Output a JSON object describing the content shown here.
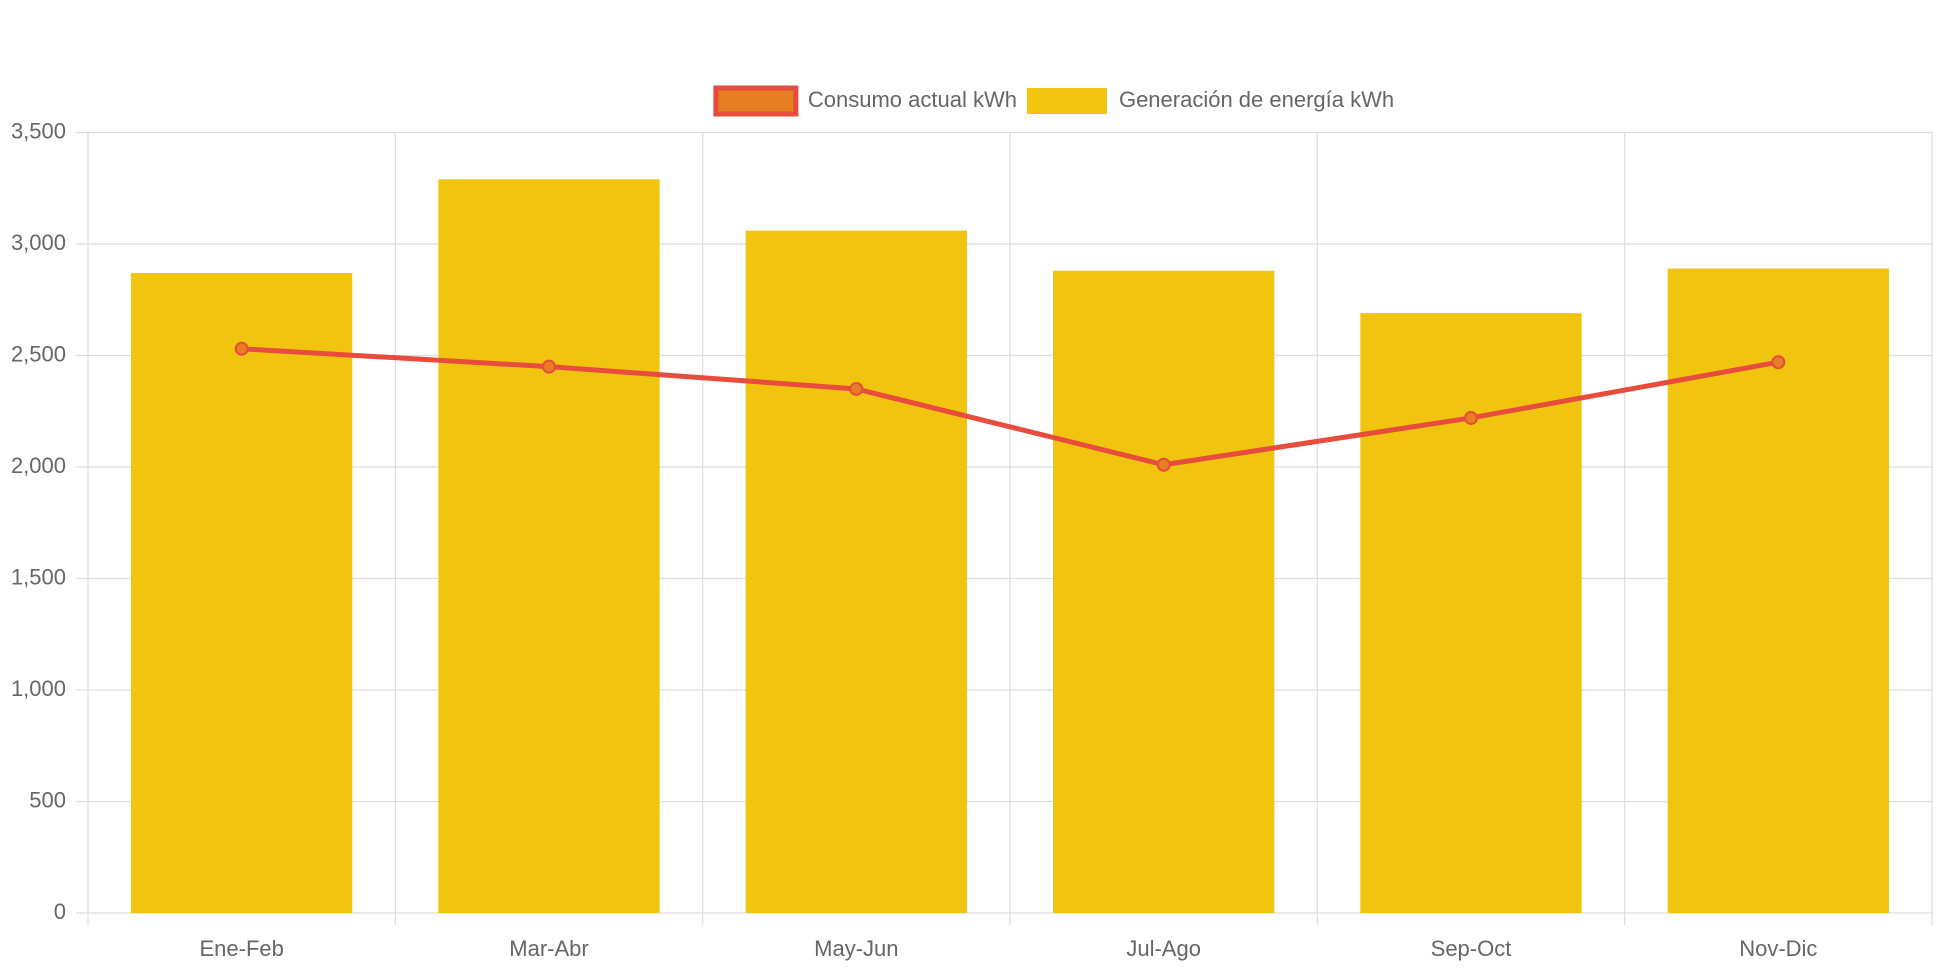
{
  "chart_data": {
    "type": "bar-line",
    "categories": [
      "Ene-Feb",
      "Mar-Abr",
      "May-Jun",
      "Jul-Ago",
      "Sep-Oct",
      "Nov-Dic"
    ],
    "series": [
      {
        "name": "Consumo actual kWh",
        "type": "line",
        "color": "#e74c3c",
        "point_color": "#e67e22",
        "values": [
          2530,
          2450,
          2350,
          2010,
          2220,
          2470
        ]
      },
      {
        "name": "Generación de energía kWh",
        "type": "bar",
        "color": "#f1c40f",
        "values": [
          2870,
          3290,
          3060,
          2880,
          2690,
          2890
        ]
      }
    ],
    "ylim": [
      0,
      3500
    ],
    "yticks": [
      0,
      500,
      {
        "value": 1000,
        "label": "1,000"
      },
      {
        "value": 1500,
        "label": "1,500"
      },
      {
        "value": 2000,
        "label": "2,000"
      },
      {
        "value": 2500,
        "label": "2,500"
      },
      {
        "value": 3000,
        "label": "3,000"
      },
      {
        "value": 3500,
        "label": "3,500"
      }
    ],
    "grid": true,
    "legend": "top"
  }
}
